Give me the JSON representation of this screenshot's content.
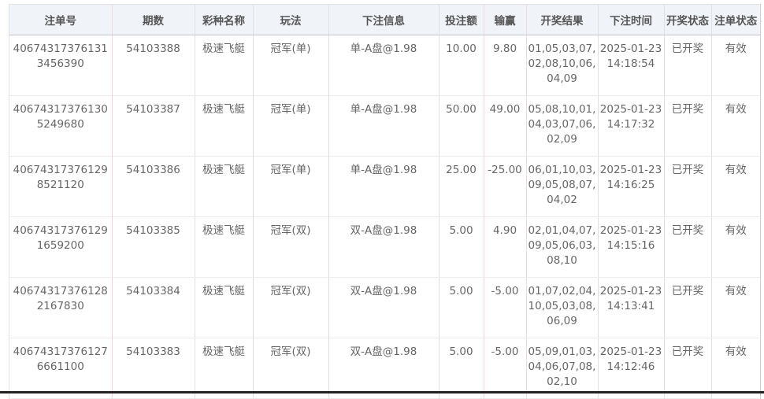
{
  "columns": [
    "注单号",
    "期数",
    "彩种名称",
    "玩法",
    "下注信息",
    "投注额",
    "输赢",
    "开奖结果",
    "下注时间",
    "开奖状态",
    "注单状态"
  ],
  "rows": [
    {
      "order_no": "406743173761313456390",
      "period": "54103388",
      "lottery": "极速飞艇",
      "play": "冠军(单)",
      "bet_info": "单-A盘@1.98",
      "amount": "10.00",
      "win_loss": "9.80",
      "result": "01,05,03,07,02,08,10,06,04,09",
      "time": "2025-01-23 14:18:54",
      "draw_status": "已开奖",
      "order_status": "有效"
    },
    {
      "order_no": "406743173761305249680",
      "period": "54103387",
      "lottery": "极速飞艇",
      "play": "冠军(单)",
      "bet_info": "单-A盘@1.98",
      "amount": "50.00",
      "win_loss": "49.00",
      "result": "05,08,10,01,04,03,07,06,02,09",
      "time": "2025-01-23 14:17:32",
      "draw_status": "已开奖",
      "order_status": "有效"
    },
    {
      "order_no": "406743173761298521120",
      "period": "54103386",
      "lottery": "极速飞艇",
      "play": "冠军(单)",
      "bet_info": "单-A盘@1.98",
      "amount": "25.00",
      "win_loss": "-25.00",
      "result": "06,01,10,03,09,05,08,07,04,02",
      "time": "2025-01-23 14:16:25",
      "draw_status": "已开奖",
      "order_status": "有效"
    },
    {
      "order_no": "406743173761291659200",
      "period": "54103385",
      "lottery": "极速飞艇",
      "play": "冠军(双)",
      "bet_info": "双-A盘@1.98",
      "amount": "5.00",
      "win_loss": "4.90",
      "result": "02,01,04,07,09,05,06,03,08,10",
      "time": "2025-01-23 14:15:16",
      "draw_status": "已开奖",
      "order_status": "有效"
    },
    {
      "order_no": "406743173761282167830",
      "period": "54103384",
      "lottery": "极速飞艇",
      "play": "冠军(双)",
      "bet_info": "双-A盘@1.98",
      "amount": "5.00",
      "win_loss": "-5.00",
      "result": "01,07,02,04,10,05,03,08,06,09",
      "time": "2025-01-23 14:13:41",
      "draw_status": "已开奖",
      "order_status": "有效"
    },
    {
      "order_no": "406743173761276661100",
      "period": "54103383",
      "lottery": "极速飞艇",
      "play": "冠军(双)",
      "bet_info": "双-A盘@1.98",
      "amount": "5.00",
      "win_loss": "-5.00",
      "result": "05,09,01,03,04,06,07,08,02,10",
      "time": "2025-01-23 14:12:46",
      "draw_status": "已开奖",
      "order_status": "有效"
    }
  ]
}
